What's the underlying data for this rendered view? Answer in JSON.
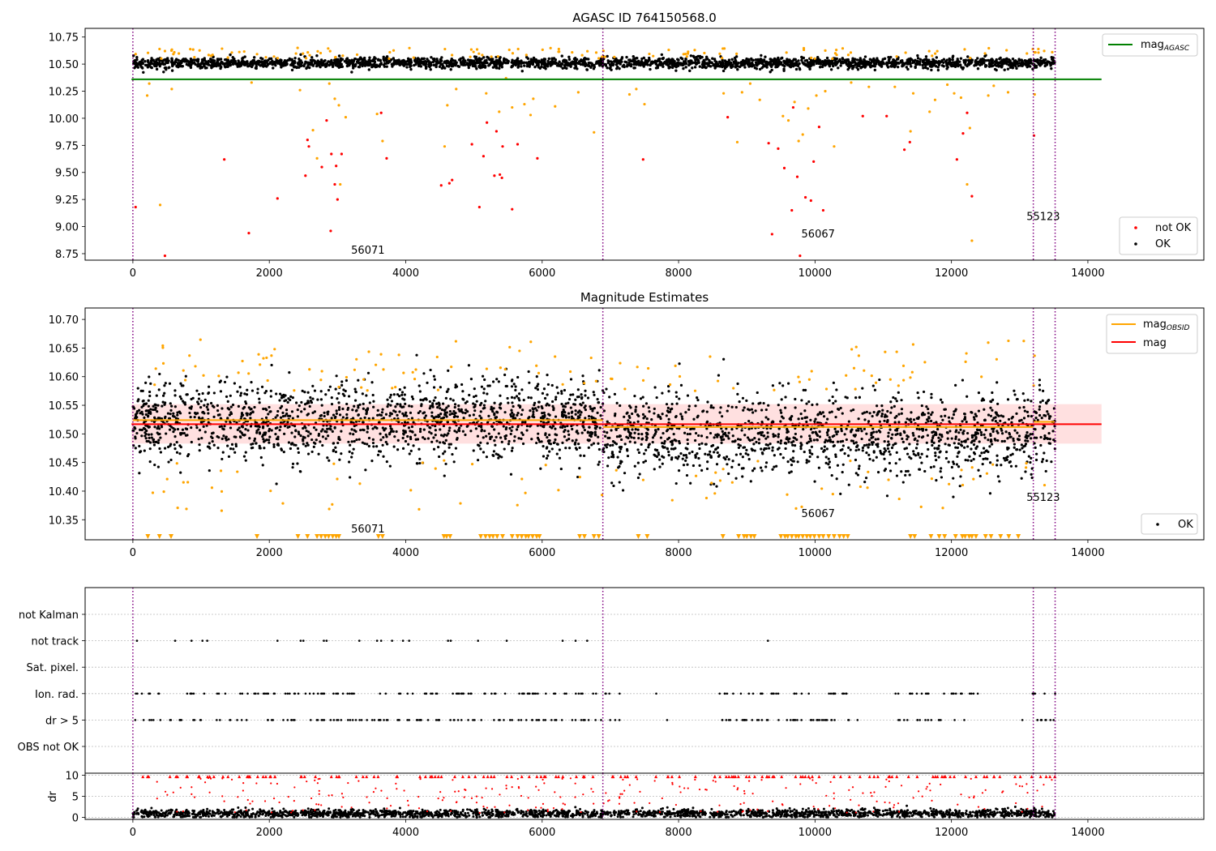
{
  "chart_data": [
    {
      "type": "scatter",
      "title": "AGASC ID 764150568.0",
      "xlabel": "",
      "ylabel": "",
      "xlim": [
        -700,
        15700
      ],
      "ylim": [
        8.69,
        10.83
      ],
      "xticks": [
        0,
        2000,
        4000,
        6000,
        8000,
        10000,
        12000,
        14000
      ],
      "yticks": [
        8.75,
        9.0,
        9.25,
        9.5,
        9.75,
        10.0,
        10.25,
        10.5,
        10.75
      ],
      "ytick_labels": [
        "8.75",
        "9.00",
        "9.25",
        "9.50",
        "9.75",
        "10.00",
        "10.25",
        "10.50",
        "10.75"
      ],
      "obsid_boundaries": [
        0,
        6890,
        13200,
        13520
      ],
      "annotations": [
        {
          "text": "56071",
          "x": 3200,
          "y": 8.75
        },
        {
          "text": "56067",
          "x": 9800,
          "y": 8.9
        },
        {
          "text": "55123",
          "x": 13100,
          "y": 9.06
        }
      ],
      "series": [
        {
          "name": "mag",
          "sub": "AGASC",
          "kind": "line",
          "color": "#008000",
          "x": [
            -20,
            14200
          ],
          "y": [
            10.36,
            10.36
          ]
        },
        {
          "name": "not OK",
          "kind": "scatter",
          "color": "#ff0000",
          "x": [
            40,
            470,
            1340,
            1700,
            2120,
            2530,
            2560,
            2580,
            2770,
            2840,
            2900,
            2910,
            2960,
            2980,
            3000,
            3060,
            3640,
            3720,
            4520,
            4640,
            4680,
            4970,
            5080,
            5140,
            5190,
            5300,
            5330,
            5380,
            5410,
            5420,
            5560,
            5640,
            5930,
            7480,
            8720,
            9320,
            9370,
            9460,
            9550,
            9660,
            9680,
            9740,
            9780,
            9860,
            9940,
            9980,
            10060,
            10120,
            10700,
            11050,
            11310,
            11390,
            12080,
            12170,
            12230,
            12300,
            13210
          ],
          "y": [
            9.18,
            8.73,
            9.62,
            8.94,
            9.26,
            9.47,
            9.8,
            9.74,
            9.55,
            9.98,
            8.96,
            9.67,
            9.39,
            9.56,
            9.25,
            9.67,
            10.05,
            9.63,
            9.38,
            9.4,
            9.43,
            9.76,
            9.18,
            9.65,
            9.96,
            9.47,
            9.88,
            9.48,
            9.45,
            9.74,
            9.16,
            9.76,
            9.63,
            9.62,
            10.01,
            9.77,
            8.93,
            9.72,
            9.54,
            9.15,
            10.1,
            9.46,
            8.73,
            9.27,
            9.24,
            9.6,
            9.92,
            9.15,
            10.02,
            10.02,
            9.71,
            9.78,
            9.62,
            9.86,
            10.05,
            9.28,
            9.84
          ]
        },
        {
          "name": "",
          "kind": "scatter",
          "color": "#ffa500",
          "x": [
            210,
            240,
            400,
            570,
            1740,
            2450,
            2640,
            2700,
            2880,
            2960,
            3020,
            3040,
            3120,
            3580,
            3660,
            4570,
            4610,
            4740,
            5180,
            5370,
            5470,
            5560,
            5740,
            5830,
            5870,
            6190,
            6530,
            6760,
            7280,
            7380,
            7500,
            8660,
            8860,
            8930,
            9050,
            9190,
            9530,
            9610,
            9700,
            9760,
            9820,
            9900,
            10020,
            10150,
            10280,
            10530,
            10790,
            11170,
            11400,
            11440,
            11680,
            11760,
            11940,
            12040,
            12140,
            12230,
            12270,
            12300,
            12540,
            12620,
            12830,
            13220
          ],
          "y": [
            10.21,
            10.32,
            9.2,
            10.27,
            10.33,
            10.26,
            9.89,
            9.63,
            10.32,
            10.18,
            10.12,
            9.39,
            10.01,
            10.04,
            9.79,
            9.74,
            10.12,
            10.27,
            10.23,
            10.06,
            10.37,
            10.1,
            10.13,
            10.03,
            10.18,
            10.11,
            10.24,
            9.87,
            10.22,
            10.27,
            10.13,
            10.23,
            9.78,
            10.24,
            10.32,
            10.17,
            10.02,
            9.98,
            10.15,
            9.79,
            9.85,
            10.09,
            10.21,
            10.25,
            9.74,
            10.33,
            10.29,
            10.29,
            9.88,
            10.23,
            10.06,
            10.17,
            10.31,
            10.23,
            10.19,
            9.39,
            9.91,
            8.87,
            10.21,
            10.3,
            10.24,
            10.22
          ]
        },
        {
          "name": "OK",
          "kind": "scatter",
          "color": "#000000",
          "x_range": [
            0,
            13520
          ],
          "y_center": 10.51,
          "y_spread": 0.055,
          "n": 2600
        }
      ],
      "legend": [
        {
          "name": "mag",
          "sub": "AGASC",
          "kind": "line",
          "color": "#008000",
          "position": "upper right"
        },
        {
          "name": "not OK",
          "kind": "point",
          "color": "#ff0000",
          "position": "lower right"
        },
        {
          "name": "OK",
          "kind": "point",
          "color": "#000000",
          "position": "lower right"
        }
      ]
    },
    {
      "type": "scatter",
      "title": "Magnitude Estimates",
      "xlabel": "",
      "ylabel": "",
      "xlim": [
        -700,
        15700
      ],
      "ylim": [
        10.315,
        10.72
      ],
      "xticks": [
        0,
        2000,
        4000,
        6000,
        8000,
        10000,
        12000,
        14000
      ],
      "yticks": [
        10.35,
        10.4,
        10.45,
        10.5,
        10.55,
        10.6,
        10.65,
        10.7
      ],
      "ytick_labels": [
        "10.35",
        "10.40",
        "10.45",
        "10.50",
        "10.55",
        "10.60",
        "10.65",
        "10.70"
      ],
      "obsid_boundaries": [
        0,
        6890,
        13200,
        13520
      ],
      "annotations": [
        {
          "text": "56071",
          "x": 3200,
          "y": 10.328
        },
        {
          "text": "56067",
          "x": 9800,
          "y": 10.355
        },
        {
          "text": "55123",
          "x": 13100,
          "y": 10.383
        }
      ],
      "mag_band": {
        "x": [
          -20,
          14200
        ],
        "y": [
          10.483,
          10.552
        ],
        "color": "#ffcccc"
      },
      "series": [
        {
          "name": "mag",
          "sub": "OBSID",
          "kind": "step",
          "color": "#ffa500",
          "segments": [
            {
              "x": [
                0,
                6890
              ],
              "y": 10.524
            },
            {
              "x": [
                6890,
                13200
              ],
              "y": 10.512
            },
            {
              "x": [
                13200,
                13520
              ],
              "y": 10.521
            }
          ]
        },
        {
          "name": "mag",
          "kind": "line",
          "color": "#ff0000",
          "x": [
            -20,
            14200
          ],
          "y": [
            10.517,
            10.517
          ]
        },
        {
          "name": "OK",
          "kind": "scatter",
          "color": "#000000",
          "x_range": [
            0,
            13520
          ],
          "y_center": 10.515,
          "y_spread": 0.035,
          "n": 3000
        },
        {
          "name": "",
          "kind": "scatter",
          "color": "#ffa500",
          "x_range": [
            0,
            13520
          ],
          "y_center": 10.515,
          "y_spread": 0.11,
          "n": 180
        },
        {
          "name": "",
          "kind": "marker-below",
          "color": "#ffa500",
          "x": [
            220,
            390,
            560,
            1820,
            2420,
            2560,
            2700,
            2760,
            2820,
            2870,
            2930,
            2980,
            3020,
            3600,
            3660,
            4560,
            4600,
            4650,
            5100,
            5170,
            5230,
            5280,
            5340,
            5420,
            5560,
            5640,
            5700,
            5760,
            5800,
            5860,
            5920,
            5960,
            6550,
            6620,
            6760,
            6830,
            7410,
            7540,
            8650,
            8880,
            8960,
            9000,
            9060,
            9110,
            9500,
            9560,
            9600,
            9660,
            9720,
            9760,
            9820,
            9880,
            9930,
            9990,
            10060,
            10120,
            10200,
            10280,
            10360,
            10420,
            10480,
            11400,
            11460,
            11700,
            11820,
            11900,
            12060,
            12160,
            12200,
            12260,
            12300,
            12360,
            12500,
            12580,
            12720,
            12840,
            12980
          ],
          "y": 10.315
        }
      ],
      "legend": [
        {
          "name": "mag",
          "sub": "OBSID",
          "kind": "line",
          "color": "#ffa500",
          "position": "upper right"
        },
        {
          "name": "mag",
          "kind": "line",
          "color": "#ff0000",
          "position": "upper right"
        },
        {
          "name": "OK",
          "kind": "point",
          "color": "#000000",
          "position": "lower right"
        }
      ]
    },
    {
      "type": "scatter",
      "title": "",
      "xlabel": "",
      "ylabel": "",
      "xlim": [
        -700,
        15700
      ],
      "categories": [
        "not Kalman",
        "not track",
        "Sat. pixel.",
        "Ion. rad.",
        "dr > 5",
        "OBS not OK"
      ],
      "xticks": [],
      "obsid_boundaries": [
        0,
        6890,
        13200,
        13520
      ],
      "series": [
        {
          "name": "not track",
          "kind": "flag",
          "color": "#000000",
          "x": [
            60,
            620,
            860,
            1020,
            1090,
            2120,
            2460,
            2500,
            2800,
            2840,
            3320,
            3580,
            3640,
            3800,
            3960,
            4050,
            4620,
            4660,
            5060,
            5480,
            6300,
            6490,
            6660,
            9310
          ]
        },
        {
          "name": "Ion. rad.",
          "kind": "flag",
          "color": "#000000",
          "x_range": [
            0,
            13520
          ],
          "n": 170,
          "gaps": [
            [
              7000,
              8500
            ],
            [
              10500,
              11150
            ],
            [
              12450,
              13150
            ]
          ]
        },
        {
          "name": "dr > 5",
          "kind": "flag",
          "color": "#000000",
          "x_range": [
            0,
            13520
          ],
          "n": 190,
          "gaps": [
            [
              7000,
              7800
            ],
            [
              7900,
              8600
            ],
            [
              10500,
              11150
            ],
            [
              12450,
              13150
            ]
          ]
        }
      ]
    },
    {
      "type": "scatter",
      "title": "",
      "xlabel": "",
      "ylabel": "dr",
      "xlim": [
        -700,
        15700
      ],
      "ylim": [
        -0.5,
        10.5
      ],
      "xticks": [
        0,
        2000,
        4000,
        6000,
        8000,
        10000,
        12000,
        14000
      ],
      "yticks": [
        0,
        5,
        10
      ],
      "ytick_labels": [
        "0",
        "5",
        "10"
      ],
      "obsid_boundaries": [
        0,
        6890,
        13200,
        13520
      ],
      "series": [
        {
          "name": "",
          "kind": "scatter",
          "color": "#000000",
          "x_range": [
            0,
            13520
          ],
          "y_center": 0.9,
          "y_spread": 0.8,
          "n": 2200
        },
        {
          "name": "",
          "kind": "scatter",
          "color": "#ff0000",
          "x_range": [
            0,
            13520
          ],
          "y_center": 5.5,
          "y_spread": 4.5,
          "n": 260
        },
        {
          "name": "",
          "kind": "marker-above",
          "color": "#ff0000",
          "x_range": [
            0,
            13520
          ],
          "y": 9.7,
          "n": 150
        }
      ]
    }
  ]
}
